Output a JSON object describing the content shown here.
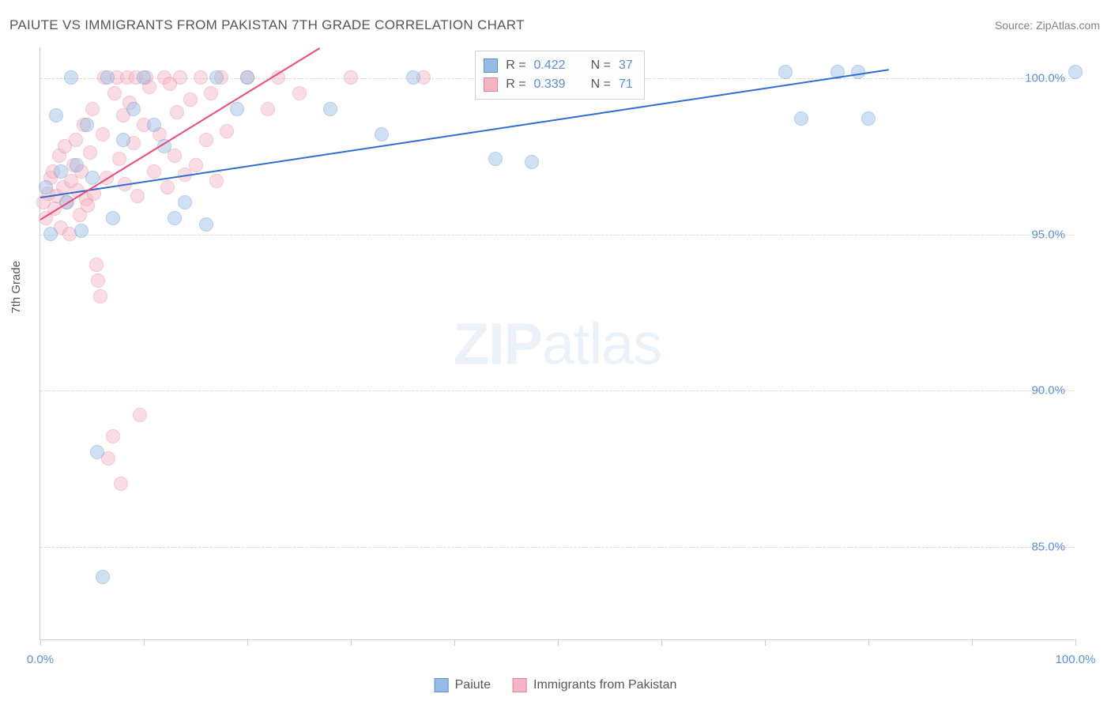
{
  "title": "PAIUTE VS IMMIGRANTS FROM PAKISTAN 7TH GRADE CORRELATION CHART",
  "source": "Source: ZipAtlas.com",
  "y_axis_title": "7th Grade",
  "watermark_bold": "ZIP",
  "watermark_light": "atlas",
  "chart": {
    "type": "scatter",
    "xlim": [
      0,
      100
    ],
    "ylim": [
      82,
      101
    ],
    "y_ticks": [
      85.0,
      90.0,
      95.0,
      100.0
    ],
    "y_tick_labels": [
      "85.0%",
      "90.0%",
      "95.0%",
      "100.0%"
    ],
    "x_ticks": [
      0,
      10,
      20,
      30,
      40,
      50,
      60,
      70,
      80,
      90,
      100
    ],
    "x_tick_labels_shown": {
      "0": "0.0%",
      "100": "100.0%"
    },
    "background_color": "#ffffff",
    "grid_color": "#d8d8d8",
    "marker_radius": 9,
    "marker_opacity": 0.45,
    "series": [
      {
        "name": "Paiute",
        "color_fill": "#96bce6",
        "color_stroke": "#5a8fd6",
        "line_color": "#2e6cd1",
        "R": "0.422",
        "N": "37",
        "trend": {
          "x1": 0,
          "y1": 96.2,
          "x2": 82,
          "y2": 100.3
        },
        "points": [
          [
            0.5,
            96.5
          ],
          [
            1.0,
            95.0
          ],
          [
            1.5,
            98.8
          ],
          [
            2.0,
            97.0
          ],
          [
            2.5,
            96.0
          ],
          [
            3.0,
            100.0
          ],
          [
            3.5,
            97.2
          ],
          [
            4.0,
            95.1
          ],
          [
            4.5,
            98.5
          ],
          [
            5.0,
            96.8
          ],
          [
            5.5,
            88.0
          ],
          [
            6.0,
            84.0
          ],
          [
            6.5,
            100.0
          ],
          [
            7.0,
            95.5
          ],
          [
            8.0,
            98.0
          ],
          [
            9.0,
            99.0
          ],
          [
            10.0,
            100.0
          ],
          [
            11.0,
            98.5
          ],
          [
            12.0,
            97.8
          ],
          [
            13.0,
            95.5
          ],
          [
            14.0,
            96.0
          ],
          [
            16.0,
            95.3
          ],
          [
            17.0,
            100.0
          ],
          [
            19.0,
            99.0
          ],
          [
            20.0,
            100.0
          ],
          [
            28.0,
            99.0
          ],
          [
            33.0,
            98.2
          ],
          [
            36.0,
            100.0
          ],
          [
            44.0,
            97.4
          ],
          [
            46.0,
            100.0
          ],
          [
            47.5,
            97.3
          ],
          [
            72.0,
            100.2
          ],
          [
            73.5,
            98.7
          ],
          [
            77.0,
            100.2
          ],
          [
            79.0,
            100.2
          ],
          [
            80.0,
            98.7
          ],
          [
            100.0,
            100.2
          ]
        ]
      },
      {
        "name": "Immigrants from Pakistan",
        "color_fill": "#f5b6c4",
        "color_stroke": "#ea7d9a",
        "line_color": "#e94b77",
        "R": "0.339",
        "N": "71",
        "trend": {
          "x1": 0,
          "y1": 95.5,
          "x2": 27,
          "y2": 101.0
        },
        "points": [
          [
            0.3,
            96.0
          ],
          [
            0.5,
            95.5
          ],
          [
            0.8,
            96.3
          ],
          [
            1.0,
            96.8
          ],
          [
            1.2,
            97.0
          ],
          [
            1.4,
            95.8
          ],
          [
            1.6,
            96.2
          ],
          [
            1.8,
            97.5
          ],
          [
            2.0,
            95.2
          ],
          [
            2.2,
            96.5
          ],
          [
            2.4,
            97.8
          ],
          [
            2.6,
            96.0
          ],
          [
            2.8,
            95.0
          ],
          [
            3.0,
            96.7
          ],
          [
            3.2,
            97.2
          ],
          [
            3.4,
            98.0
          ],
          [
            3.6,
            96.4
          ],
          [
            3.8,
            95.6
          ],
          [
            4.0,
            97.0
          ],
          [
            4.2,
            98.5
          ],
          [
            4.4,
            96.1
          ],
          [
            4.6,
            95.9
          ],
          [
            4.8,
            97.6
          ],
          [
            5.0,
            99.0
          ],
          [
            5.2,
            96.3
          ],
          [
            5.4,
            94.0
          ],
          [
            5.6,
            93.5
          ],
          [
            5.8,
            93.0
          ],
          [
            6.0,
            98.2
          ],
          [
            6.2,
            100.0
          ],
          [
            6.4,
            96.8
          ],
          [
            6.6,
            87.8
          ],
          [
            7.0,
            88.5
          ],
          [
            7.2,
            99.5
          ],
          [
            7.4,
            100.0
          ],
          [
            7.6,
            97.4
          ],
          [
            7.8,
            87.0
          ],
          [
            8.0,
            98.8
          ],
          [
            8.2,
            96.6
          ],
          [
            8.4,
            100.0
          ],
          [
            8.6,
            99.2
          ],
          [
            9.0,
            97.9
          ],
          [
            9.2,
            100.0
          ],
          [
            9.4,
            96.2
          ],
          [
            9.6,
            89.2
          ],
          [
            10.0,
            98.5
          ],
          [
            10.2,
            100.0
          ],
          [
            10.5,
            99.7
          ],
          [
            11.0,
            97.0
          ],
          [
            11.5,
            98.2
          ],
          [
            12.0,
            100.0
          ],
          [
            12.3,
            96.5
          ],
          [
            12.5,
            99.8
          ],
          [
            13.0,
            97.5
          ],
          [
            13.2,
            98.9
          ],
          [
            13.5,
            100.0
          ],
          [
            14.0,
            96.9
          ],
          [
            14.5,
            99.3
          ],
          [
            15.0,
            97.2
          ],
          [
            15.5,
            100.0
          ],
          [
            16.0,
            98.0
          ],
          [
            16.5,
            99.5
          ],
          [
            17.0,
            96.7
          ],
          [
            17.5,
            100.0
          ],
          [
            18.0,
            98.3
          ],
          [
            20.0,
            100.0
          ],
          [
            22.0,
            99.0
          ],
          [
            23.0,
            100.0
          ],
          [
            25.0,
            99.5
          ],
          [
            30.0,
            100.0
          ],
          [
            37.0,
            100.0
          ]
        ]
      }
    ]
  },
  "legend_stats": {
    "r_label": "R =",
    "n_label": "N ="
  },
  "bottom_legend": {
    "series1": "Paiute",
    "series2": "Immigrants from Pakistan"
  }
}
